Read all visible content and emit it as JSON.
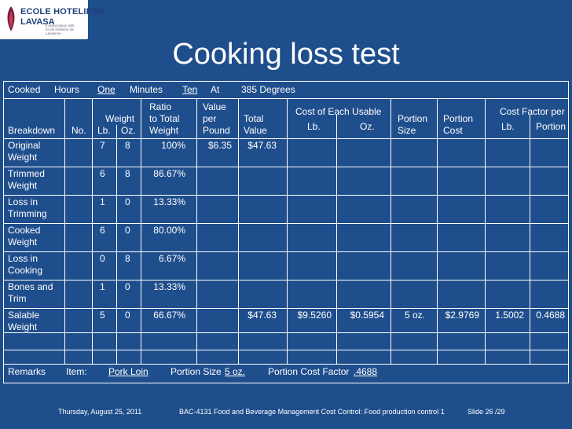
{
  "logo": {
    "line1": "ECOLE HOTELIERE",
    "line2": "LAVASA",
    "tagline": "In association with Ecole hôtelière de Lausanne"
  },
  "title": "Cooking loss test",
  "header_row1": {
    "cooked": "Cooked",
    "hours": "Hours",
    "hours_value": "One",
    "minutes": "Minutes",
    "minutes_value": "Ten",
    "at": "At",
    "degrees": "385 Degrees"
  },
  "headers": {
    "ratio1": "Ratio",
    "ratio2": "to Total",
    "ratio3": "Weight",
    "value1": "Value",
    "value2": "per",
    "value3": "Pound",
    "weight": "Weight",
    "lb": "Lb.",
    "oz": "Oz.",
    "total1": "Total",
    "total2": "Value",
    "cost_usable": "Cost of Each Usable",
    "cost_lb": "Lb.",
    "cost_oz": "Oz.",
    "portion_size1": "Portion",
    "portion_size2": "Size",
    "portion_cost1": "Portion",
    "portion_cost2": "Cost",
    "factor": "Cost Factor per",
    "factor_lb": "Lb.",
    "factor_portion": "Portion",
    "breakdown": "Breakdown",
    "no": "No."
  },
  "rows": [
    {
      "l1": "Original",
      "l2": "Weight",
      "lb": "7",
      "oz": "8",
      "ratio": "100%",
      "vpp": "$6.35",
      "total": "$47.63"
    },
    {
      "l1": "Trimmed",
      "l2": "Weight",
      "lb": "6",
      "oz": "8",
      "ratio": "86.67%"
    },
    {
      "l1": "Loss in",
      "l2": "Trimming",
      "lb": "1",
      "oz": "0",
      "ratio": "13.33%"
    },
    {
      "l1": "Cooked",
      "l2": "Weight",
      "lb": "6",
      "oz": "0",
      "ratio": "80.00%"
    },
    {
      "l1": "Loss in",
      "l2": "Cooking",
      "lb": "0",
      "oz": "8",
      "ratio": "6.67%"
    },
    {
      "l1": "Bones and",
      "l2": "Trim",
      "lb": "1",
      "oz": "0",
      "ratio": "13.33%"
    },
    {
      "l1": "Salable",
      "l2": "Weight",
      "lb": "5",
      "oz": "0",
      "ratio": "66.67%",
      "total": "$47.63",
      "cost_lb": "$9.5260",
      "cost_oz": "$0.5954",
      "portion_size": "5 oz.",
      "portion_cost": "$2.9769",
      "factor_lb": "1.5002",
      "factor_portion": "0.4688"
    }
  ],
  "remarks": {
    "label": "Remarks",
    "item_label": "Item:",
    "item_value": "Pork Loin",
    "portion_label": "Portion Size",
    "portion_value": "5 oz.",
    "factor_label": "Portion Cost Factor",
    "factor_value": ".4688"
  },
  "footer": {
    "date": "Thursday, August 25, 2011",
    "course": "BAC-4131 Food and Beverage Management Cost Control: Food production control 1",
    "slide": "Slide 26 /29"
  }
}
